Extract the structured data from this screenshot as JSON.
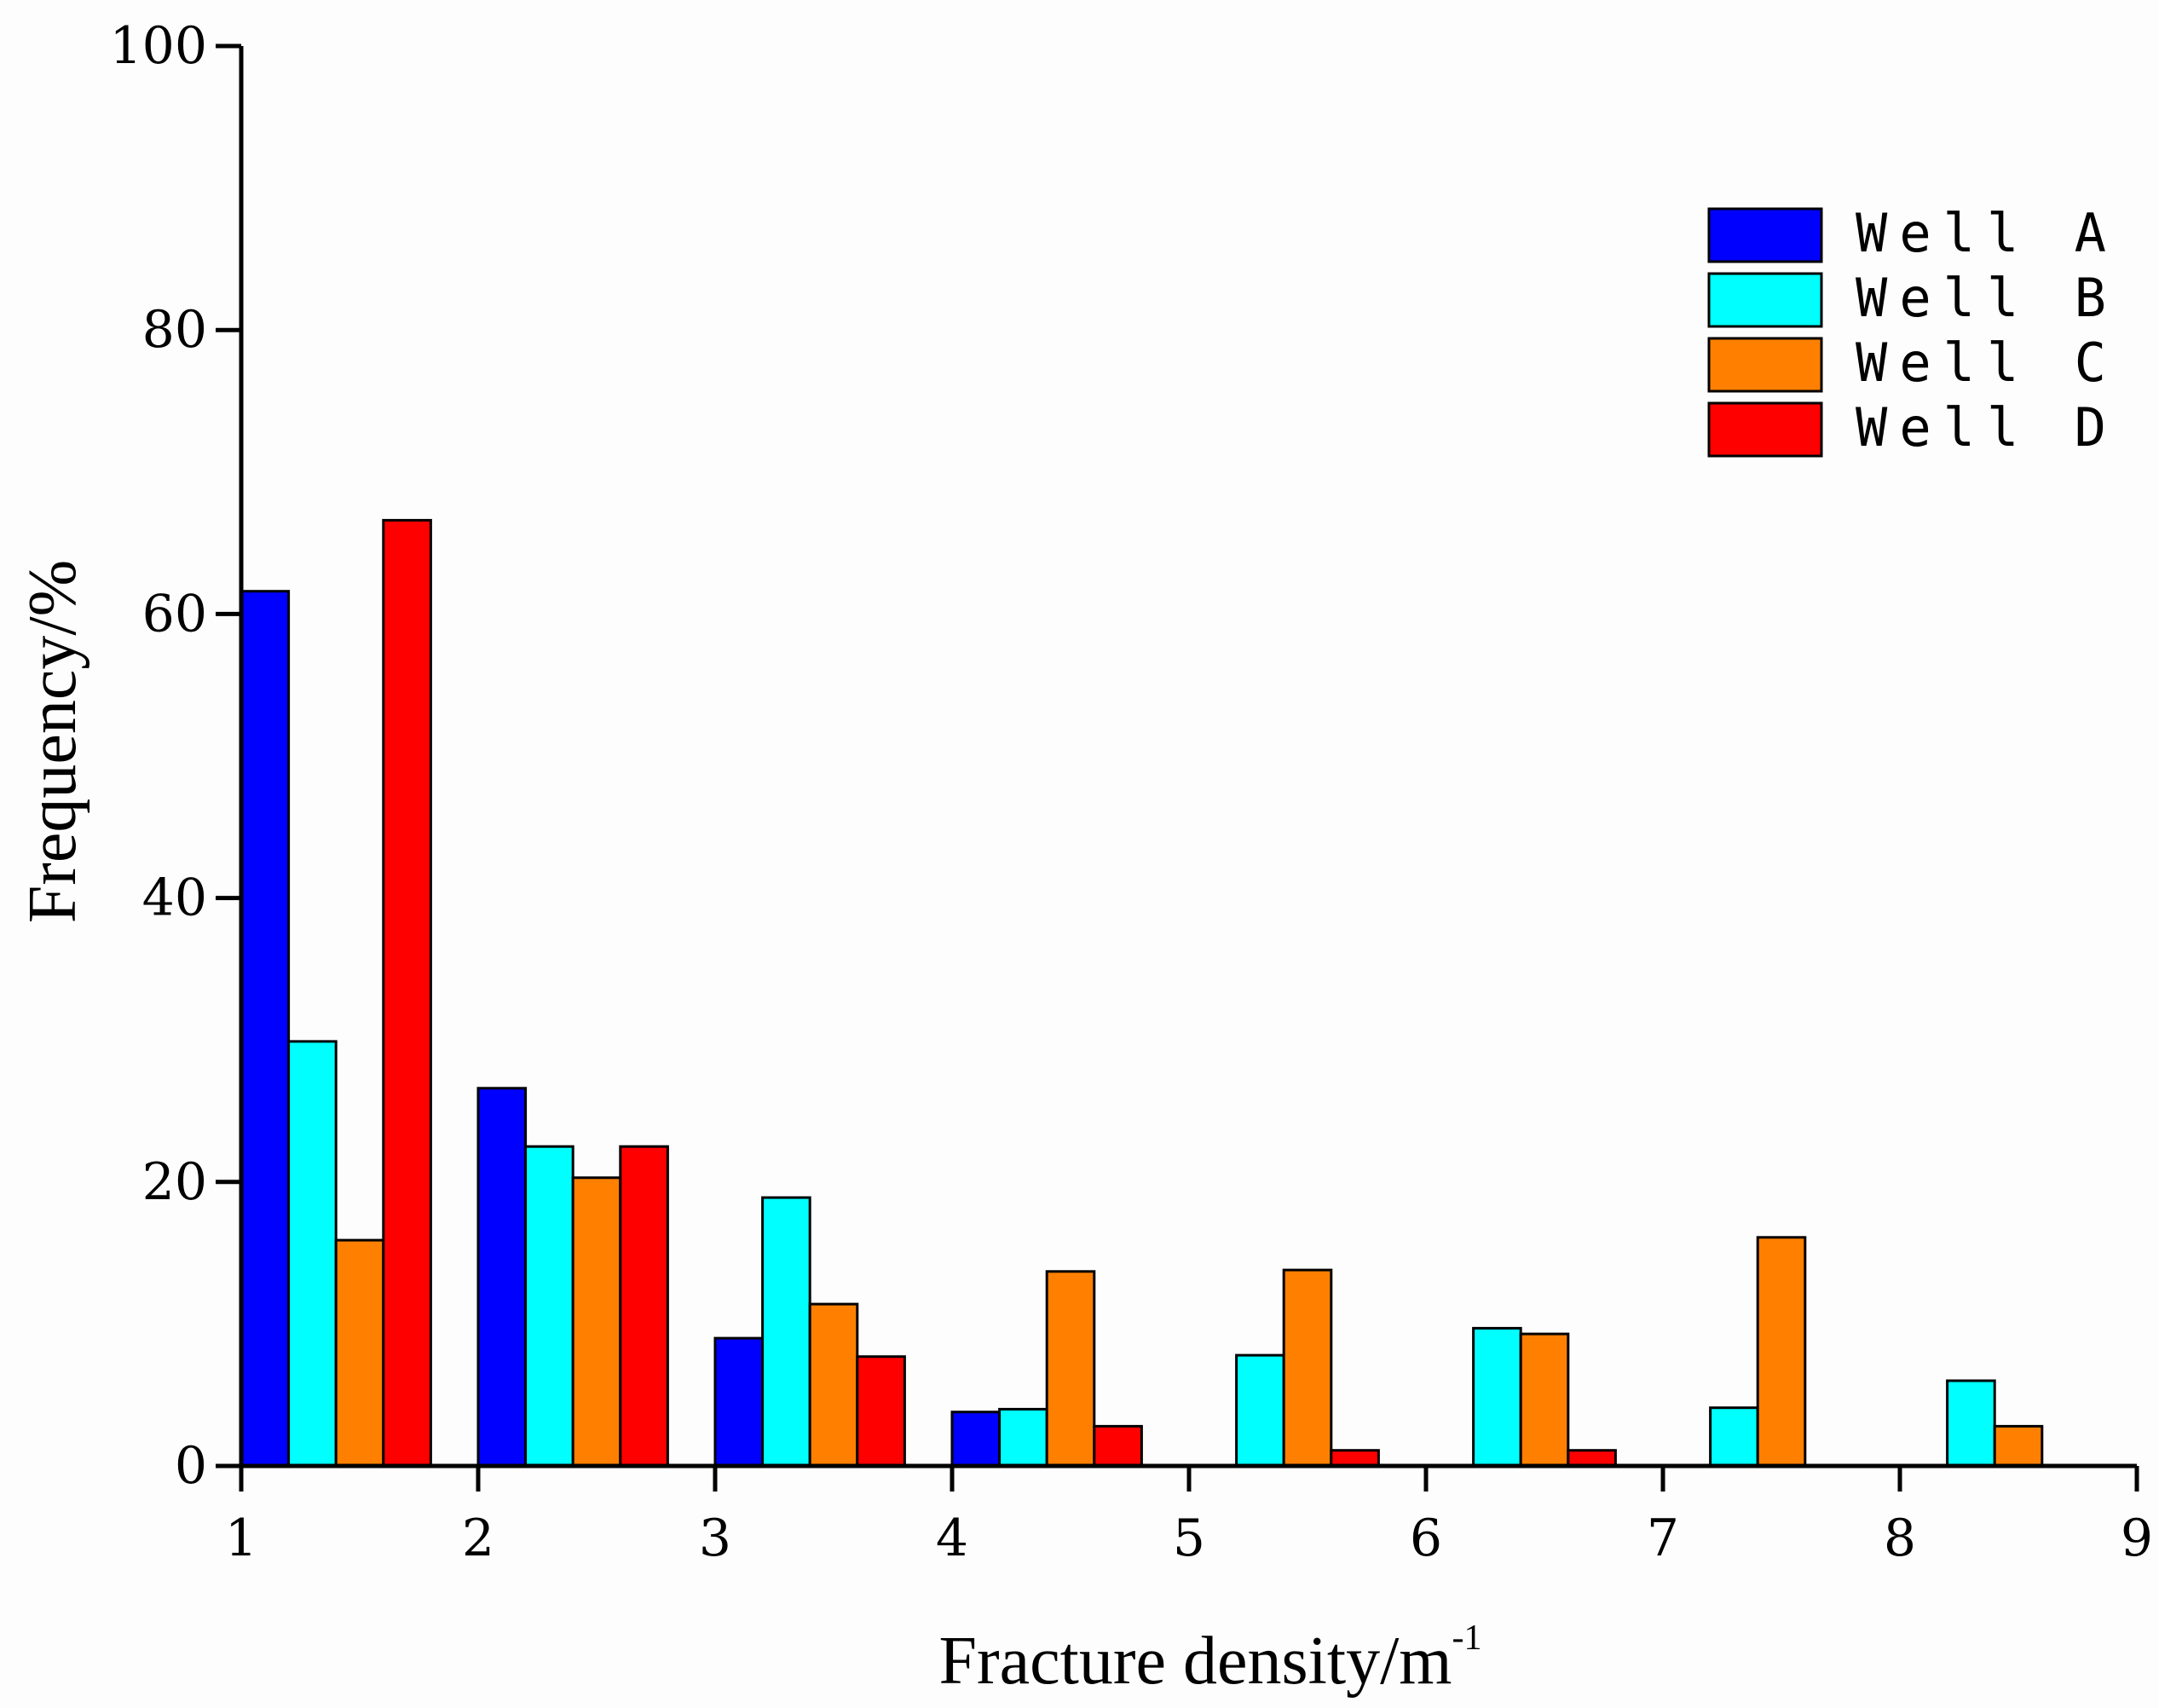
{
  "chart_data": {
    "type": "bar",
    "title": "",
    "xlabel": "Fracture density/m",
    "xlabel_superscript": "-1",
    "ylabel": "Frequency/%",
    "xlim": [
      1,
      9
    ],
    "ylim": [
      0,
      100
    ],
    "xticks": [
      "1",
      "2",
      "3",
      "4",
      "5",
      "6",
      "7",
      "8",
      "9"
    ],
    "yticks": [
      "0",
      "20",
      "40",
      "60",
      "80",
      "100"
    ],
    "categories": [
      "1-2",
      "2-3",
      "3-4",
      "4-5",
      "5-6",
      "6-7",
      "7-8",
      "8-9"
    ],
    "legend_position": "top-right",
    "series": [
      {
        "name": "Well A",
        "color": "#0000ff",
        "values": [
          61.6,
          26.6,
          9.0,
          3.8,
          0,
          0,
          0,
          0
        ]
      },
      {
        "name": "Well B",
        "color": "#00ffff",
        "values": [
          29.9,
          22.5,
          18.9,
          4.0,
          7.8,
          9.7,
          4.1,
          6.0
        ]
      },
      {
        "name": "Well C",
        "color": "#ff8000",
        "values": [
          15.9,
          20.3,
          11.4,
          13.7,
          13.8,
          9.3,
          16.1,
          2.8
        ]
      },
      {
        "name": "Well D",
        "color": "#ff0000",
        "values": [
          66.6,
          22.5,
          7.7,
          2.8,
          1.1,
          1.1,
          0,
          0
        ]
      }
    ]
  }
}
